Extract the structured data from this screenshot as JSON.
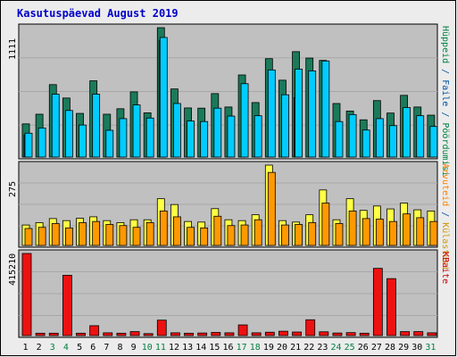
{
  "title": "Kasutuspäevad August 2019",
  "colors": {
    "background": "#ececec",
    "panel": "#c0c0c0",
    "title": "#0000cc",
    "visits_dark": "#1a7a5a",
    "pages": "#00ccff",
    "pages_dark": "#0066aa",
    "hits": "#ffff44",
    "files": "#ff9900",
    "bytes": "#ee1111",
    "label_visits": "#008040",
    "label_sites": "#cc9900",
    "label_files": "#0050a0",
    "label_hits": "#ff8000",
    "label_bytes": "#cc0000",
    "day_weekend": "#008040",
    "day_weekday": "#000000"
  },
  "chart_data": [
    {
      "type": "bar",
      "panel": "top",
      "ytick_label": "1111",
      "ylim": [
        0,
        1111
      ],
      "right_label_parts": [
        {
          "text": "Hüppeid",
          "color_key": "label_visits"
        },
        {
          "text": " / ",
          "color_key": "label_files"
        },
        {
          "text": "Faile",
          "color_key": "label_files"
        },
        {
          "text": " / ",
          "color_key": "label_files"
        },
        {
          "text": "Pöördumisi",
          "color_key": "label_visits"
        }
      ],
      "categories": [
        "1",
        "2",
        "3",
        "4",
        "5",
        "6",
        "7",
        "8",
        "9",
        "10",
        "11",
        "12",
        "13",
        "14",
        "15",
        "16",
        "17",
        "18",
        "19",
        "20",
        "21",
        "22",
        "23",
        "24",
        "25",
        "26",
        "27",
        "28",
        "29",
        "30",
        "31"
      ],
      "series": [
        {
          "name": "Hüppeid",
          "values": [
            285,
            368,
            622,
            507,
            375,
            655,
            368,
            415,
            560,
            380,
            1111,
            585,
            422,
            420,
            545,
            430,
            705,
            468,
            845,
            660,
            905,
            850,
            830,
            460,
            395,
            320,
            485,
            378,
            530,
            430,
            360
          ]
        },
        {
          "name": "Faile",
          "values": [
            205,
            250,
            540,
            400,
            275,
            540,
            230,
            330,
            448,
            335,
            1027,
            460,
            310,
            305,
            420,
            352,
            630,
            355,
            748,
            535,
            755,
            740,
            825,
            305,
            365,
            232,
            330,
            270,
            425,
            355,
            263
          ]
        },
        {
          "name": "Pöördumisi",
          "values": [
            190,
            0,
            0,
            0,
            0,
            0,
            0,
            0,
            0,
            0,
            1000,
            0,
            0,
            0,
            0,
            0,
            0,
            0,
            0,
            0,
            510,
            0,
            0,
            0,
            0,
            0,
            0,
            0,
            0,
            0,
            0
          ]
        }
      ]
    },
    {
      "type": "bar",
      "panel": "middle",
      "ytick_label": "275",
      "ylim": [
        0,
        275
      ],
      "right_label_parts": [
        {
          "text": "Arvuteid",
          "color_key": "label_hits"
        },
        {
          "text": " / ",
          "color_key": "label_files"
        },
        {
          "text": "Külastusi",
          "color_key": "label_sites"
        }
      ],
      "categories": [
        "1",
        "2",
        "3",
        "4",
        "5",
        "6",
        "7",
        "8",
        "9",
        "10",
        "11",
        "12",
        "13",
        "14",
        "15",
        "16",
        "17",
        "18",
        "19",
        "20",
        "21",
        "22",
        "23",
        "24",
        "25",
        "26",
        "27",
        "28",
        "29",
        "30",
        "31"
      ],
      "series": [
        {
          "name": "Külastusi",
          "values": [
            70,
            78,
            92,
            85,
            93,
            98,
            85,
            78,
            88,
            88,
            160,
            140,
            82,
            80,
            126,
            88,
            85,
            105,
            275,
            85,
            80,
            105,
            190,
            88,
            160,
            120,
            135,
            125,
            145,
            122,
            118
          ]
        },
        {
          "name": "Arvuteid",
          "values": [
            58,
            62,
            75,
            60,
            78,
            82,
            72,
            68,
            62,
            78,
            118,
            98,
            62,
            60,
            100,
            68,
            70,
            88,
            250,
            70,
            72,
            78,
            145,
            75,
            118,
            92,
            90,
            82,
            108,
            95,
            82
          ]
        }
      ]
    },
    {
      "type": "bar",
      "panel": "bottom",
      "ytick_label": "415210",
      "ylim": [
        0,
        415210
      ],
      "right_label_parts": [
        {
          "text": "KBaite",
          "color_key": "label_bytes"
        }
      ],
      "categories": [
        "1",
        "2",
        "3",
        "4",
        "5",
        "6",
        "7",
        "8",
        "9",
        "10",
        "11",
        "12",
        "13",
        "14",
        "15",
        "16",
        "17",
        "18",
        "19",
        "20",
        "21",
        "22",
        "23",
        "24",
        "25",
        "26",
        "27",
        "28",
        "29",
        "30",
        "31"
      ],
      "series": [
        {
          "name": "KBaite",
          "values": [
            415210,
            12000,
            12000,
            305000,
            12000,
            50000,
            14000,
            12000,
            20000,
            10000,
            78000,
            14000,
            12000,
            13000,
            16000,
            14000,
            54000,
            14000,
            17000,
            22000,
            18000,
            80000,
            19000,
            13000,
            15000,
            12000,
            340000,
            288000,
            20000,
            20000,
            14000
          ]
        }
      ]
    }
  ],
  "weekend_days": [
    "3",
    "4",
    "10",
    "11",
    "17",
    "18",
    "24",
    "25",
    "31"
  ]
}
